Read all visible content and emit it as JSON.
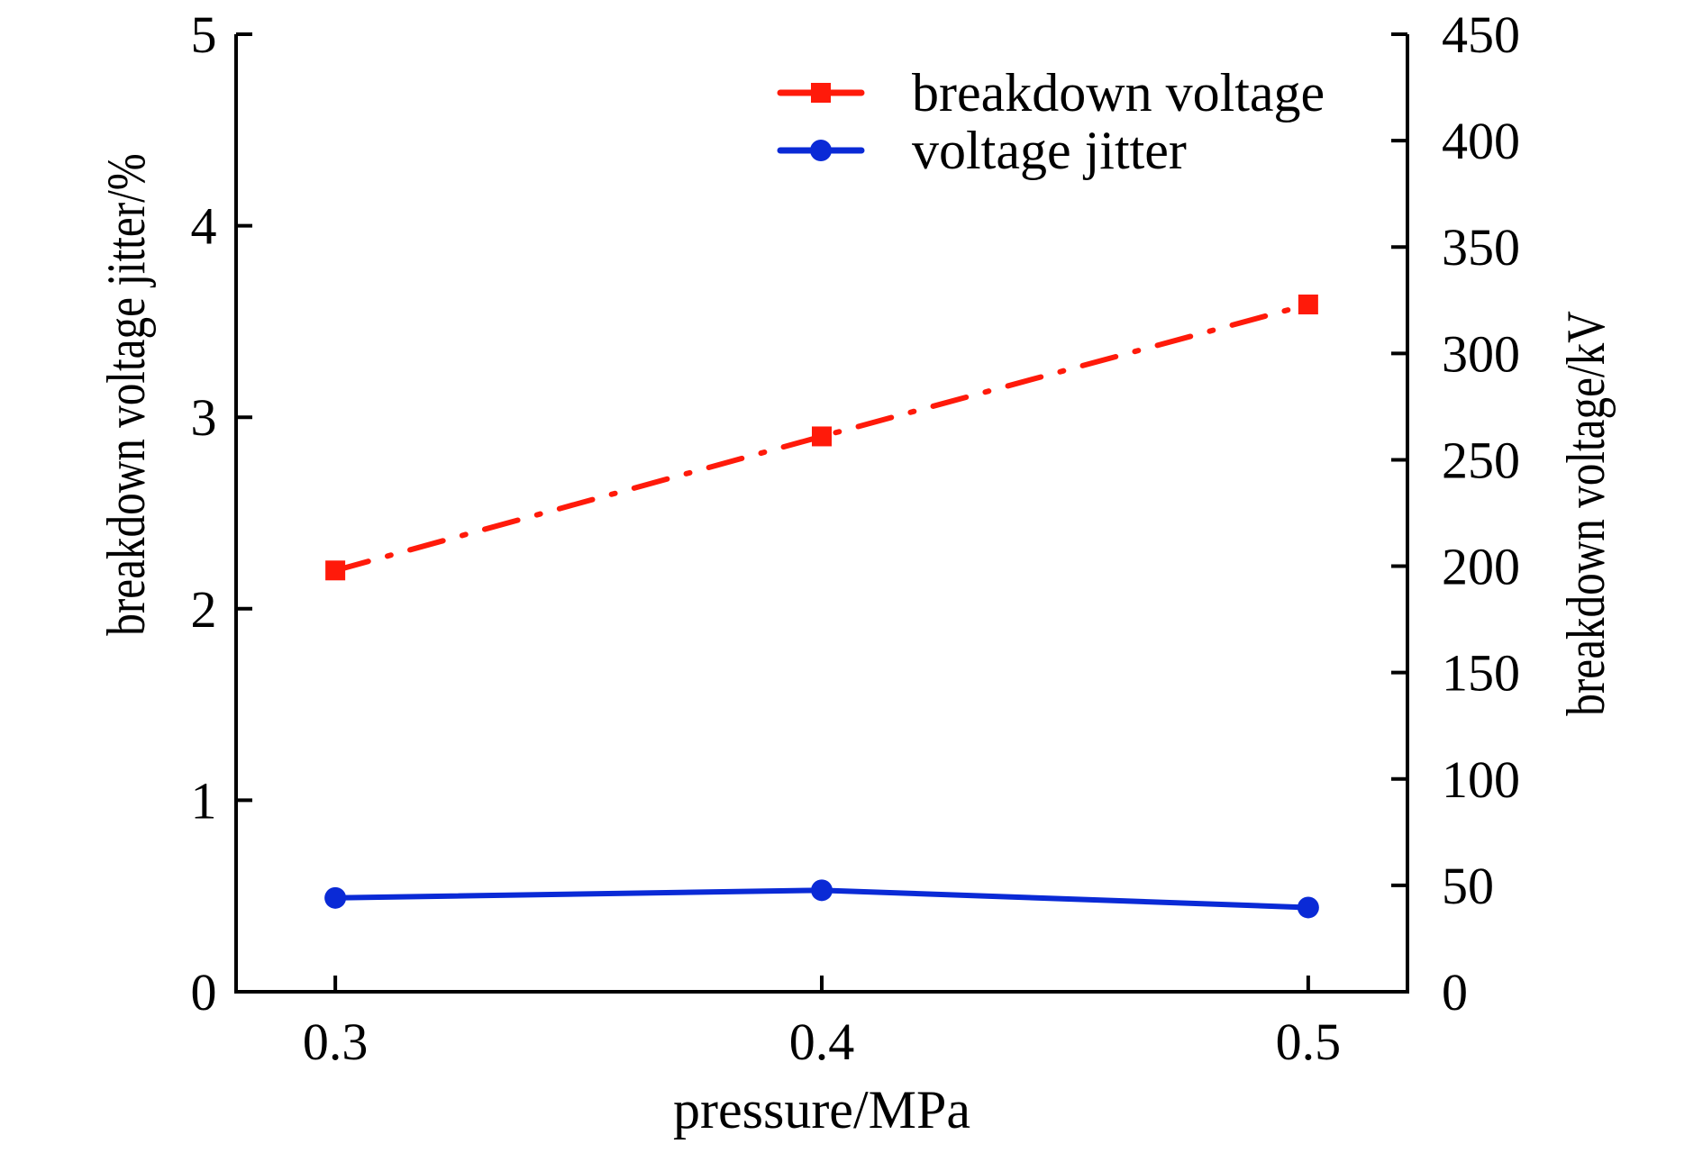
{
  "chart_data": {
    "type": "line",
    "title": "",
    "xlabel": "pressure/MPa",
    "ylabel_left": "breakdown voltage jitter/%",
    "ylabel_right": "breakdown voltage/kV",
    "x": [
      0.3,
      0.4,
      0.5
    ],
    "x_tick_labels": [
      "0.3",
      "0.4",
      "0.5"
    ],
    "xlim": [
      0.2796,
      0.5204
    ],
    "ylim_left": [
      0,
      5
    ],
    "y_left_ticks": [
      0,
      1,
      2,
      3,
      4,
      5
    ],
    "y_left_tick_labels": [
      "0",
      "1",
      "2",
      "3",
      "4",
      "5"
    ],
    "ylim_right": [
      0,
      450
    ],
    "y_right_ticks": [
      0,
      50,
      100,
      150,
      200,
      250,
      300,
      350,
      400,
      450
    ],
    "y_right_tick_labels": [
      "0",
      "50",
      "100",
      "150",
      "200",
      "250",
      "300",
      "350",
      "400",
      "450"
    ],
    "grid": false,
    "legend_position": "top-right",
    "series": [
      {
        "name": "breakdown voltage",
        "axis": "right",
        "color": "#ff1a0a",
        "line_style": "dash-dot",
        "marker": "square",
        "values": [
          198,
          261,
          323
        ]
      },
      {
        "name": "voltage jitter",
        "axis": "left",
        "color": "#0a2ad6",
        "line_style": "solid",
        "marker": "circle",
        "values": [
          0.49,
          0.53,
          0.44
        ]
      }
    ]
  }
}
